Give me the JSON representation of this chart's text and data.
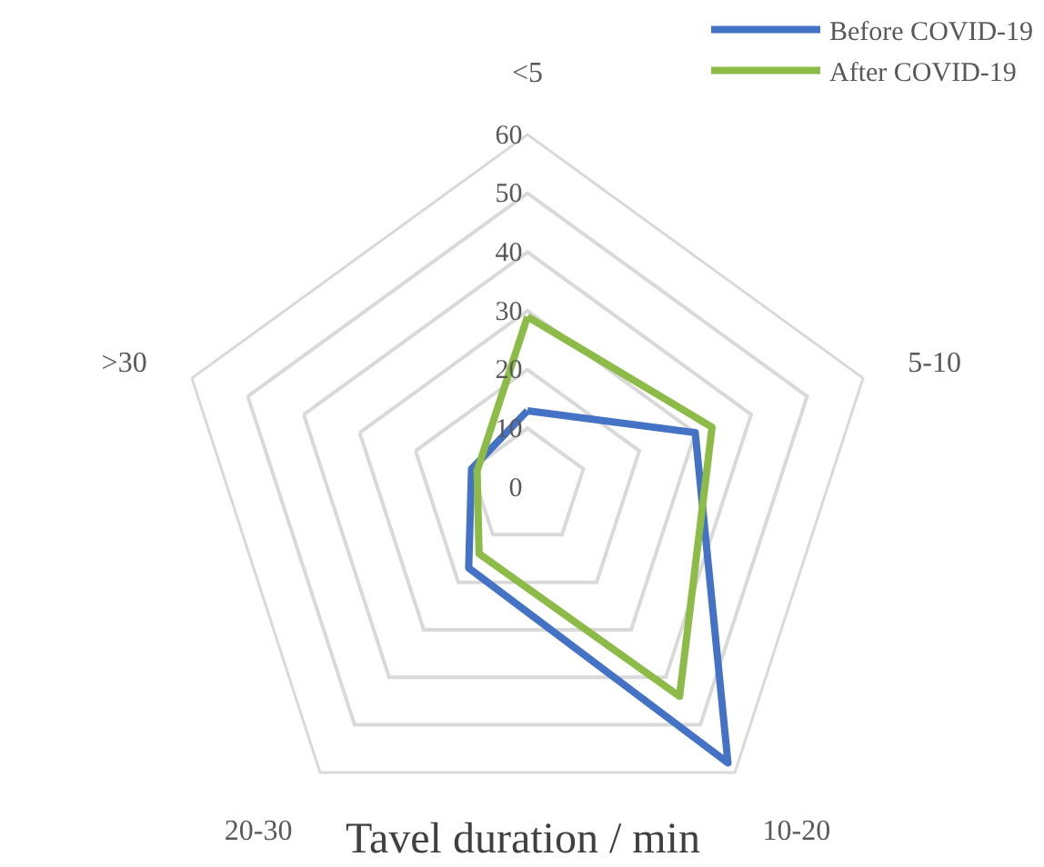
{
  "chart_data": {
    "type": "radar",
    "xlabel": "Tavel duration / min",
    "categories": [
      "<5",
      "5-10",
      "10-20",
      "20-30",
      ">30"
    ],
    "series": [
      {
        "name": "Before COVID-19",
        "color": "#4472c4",
        "values": [
          13,
          30,
          58,
          17,
          10
        ]
      },
      {
        "name": "After COVID-19",
        "color": "#8cbb47",
        "values": [
          29,
          33,
          44,
          14,
          9
        ]
      }
    ],
    "ylim": [
      0,
      60
    ],
    "yticks": [
      0,
      10,
      20,
      30,
      40,
      50,
      60
    ],
    "grid": true,
    "legend": "top right"
  }
}
